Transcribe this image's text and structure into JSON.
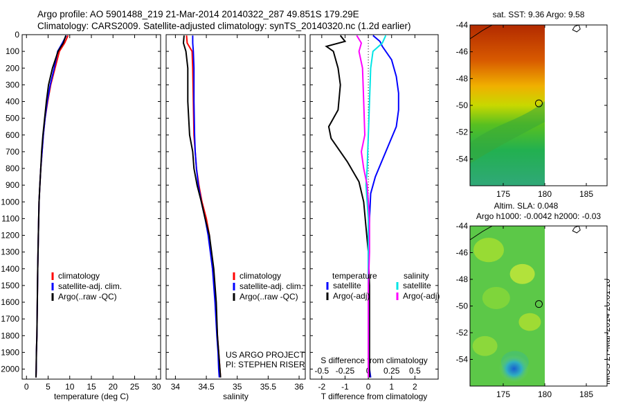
{
  "header": {
    "line1": "Argo profile: AO 5901488_219 21-Mar-2014 20140322_287 49.851S 179.29E",
    "line2": "Climatology: CARS2009. Satellite-adjusted climatology: synTS_20140320.nc (1.2d earlier)"
  },
  "stamp": "IMOS 27-Mar-2014 20:01:10",
  "colors": {
    "climatology": "#ff0000",
    "satellite": "#0000ff",
    "argo": "#000000",
    "sat_salinity": "#00e5e5",
    "argo_salinity": "#ff00ff"
  },
  "chart_data": [
    {
      "type": "line",
      "id": "temperature",
      "xlabel": "temperature (deg C)",
      "xlim": [
        -1,
        31
      ],
      "xticks": [
        0,
        5,
        10,
        15,
        20,
        25,
        30
      ],
      "ylim": [
        2060,
        0
      ],
      "yticks": [
        0,
        100,
        200,
        300,
        400,
        500,
        600,
        700,
        800,
        900,
        1000,
        1100,
        1200,
        1300,
        1400,
        1500,
        1600,
        1700,
        1800,
        1900,
        2000
      ],
      "legend": [
        "climatology",
        "satellite-adj. clim.",
        "Argo(..raw -QC)"
      ],
      "series": [
        {
          "name": "climatology",
          "color": "#ff0000",
          "x": [
            9.6,
            8.8,
            7.6,
            6.6,
            5.6,
            4.9,
            4.3,
            3.9,
            3.6,
            3.3,
            3.1,
            2.9,
            2.75,
            2.6,
            2.5,
            2.4,
            2.3,
            2.25,
            2.2
          ],
          "y": [
            5,
            50,
            100,
            200,
            300,
            400,
            500,
            600,
            700,
            800,
            900,
            1000,
            1200,
            1400,
            1600,
            1800,
            1900,
            2000,
            2050
          ]
        },
        {
          "name": "satellite-adj. clim.",
          "color": "#0000ff",
          "x": [
            9.2,
            8.3,
            7.2,
            6.4,
            5.5,
            4.8,
            4.3,
            3.9,
            3.6,
            3.3,
            3.1,
            2.9,
            2.75,
            2.6,
            2.5,
            2.4,
            2.3,
            2.25,
            2.2
          ],
          "y": [
            5,
            50,
            100,
            200,
            300,
            400,
            500,
            600,
            700,
            800,
            900,
            1000,
            1200,
            1400,
            1600,
            1800,
            1900,
            2000,
            2050
          ]
        },
        {
          "name": "Argo(..raw -QC)",
          "color": "#000000",
          "x": [
            9.1,
            8.5,
            7.3,
            6.0,
            5.1,
            4.6,
            4.2,
            3.8,
            3.5,
            3.3,
            3.1,
            2.9,
            2.75,
            2.6,
            2.5,
            2.4,
            2.3,
            2.25,
            2.2
          ],
          "y": [
            5,
            50,
            100,
            200,
            300,
            400,
            500,
            600,
            700,
            800,
            900,
            1000,
            1200,
            1400,
            1600,
            1800,
            1900,
            2000,
            2050
          ]
        }
      ]
    },
    {
      "type": "line",
      "id": "salinity",
      "xlabel": "salinity",
      "xlim": [
        33.85,
        36.1
      ],
      "xticks": [
        34,
        34.5,
        35,
        35.5,
        36
      ],
      "ylim": [
        2060,
        0
      ],
      "legend": [
        "climatology",
        "satellite-adj. clim.",
        "Argo(..raw -QC)"
      ],
      "annotations": [
        "US ARGO PROJECT",
        "PI: STEPHEN RISER"
      ],
      "series": [
        {
          "name": "climatology",
          "color": "#ff0000",
          "x": [
            34.18,
            34.19,
            34.27,
            34.28,
            34.29,
            34.3,
            34.32,
            34.34,
            34.38,
            34.43,
            34.5,
            34.55,
            34.6,
            34.65,
            34.68,
            34.7,
            34.72,
            34.73
          ],
          "y": [
            5,
            50,
            100,
            200,
            400,
            600,
            700,
            800,
            900,
            1000,
            1100,
            1200,
            1400,
            1600,
            1800,
            1900,
            2000,
            2050
          ]
        },
        {
          "name": "satellite-adj. clim.",
          "color": "#0000ff",
          "x": [
            34.28,
            34.28,
            34.29,
            34.3,
            34.3,
            34.31,
            34.32,
            34.34,
            34.37,
            34.42,
            34.48,
            34.53,
            34.6,
            34.64,
            34.67,
            34.69,
            34.7,
            34.71
          ],
          "y": [
            5,
            50,
            100,
            200,
            400,
            600,
            700,
            800,
            900,
            1000,
            1100,
            1200,
            1400,
            1600,
            1800,
            1900,
            2000,
            2050
          ]
        },
        {
          "name": "Argo(..raw -QC)",
          "color": "#000000",
          "x": [
            34.14,
            34.13,
            34.17,
            34.2,
            34.2,
            34.23,
            34.28,
            34.3,
            34.35,
            34.42,
            34.48,
            34.55,
            34.62,
            34.66,
            34.68,
            34.7,
            34.72,
            34.73
          ],
          "y": [
            5,
            50,
            100,
            200,
            400,
            600,
            700,
            800,
            900,
            1000,
            1100,
            1200,
            1400,
            1600,
            1800,
            1900,
            2000,
            2050
          ]
        }
      ]
    },
    {
      "type": "line",
      "id": "difference",
      "xlabel": "T difference from climatology",
      "xlabel2": "S difference from climatology",
      "xlim": [
        -2.5,
        3.0
      ],
      "xticks": [
        -2,
        -1,
        0,
        1,
        2
      ],
      "x2ticks": [
        -0.5,
        -0.25,
        0,
        0.25,
        0.5
      ],
      "x2tick_labels": [
        "-0.5",
        "-0.25",
        "0",
        "0.25",
        "0.5"
      ],
      "ylim": [
        2060,
        0
      ],
      "legend_temperature": {
        "title": "temperature",
        "items": [
          "satellite",
          "Argo(-adj)"
        ]
      },
      "legend_salinity": {
        "title": "salinity",
        "items": [
          "satellite",
          "Argo(-adj)"
        ]
      },
      "series": [
        {
          "name": "temperature satellite",
          "color": "#0000ff",
          "x": [
            0.2,
            0.5,
            0.6,
            1.0,
            1.2,
            1.3,
            1.3,
            1.2,
            0.9,
            0.6,
            0.3,
            0.1,
            0.05,
            0.0,
            0.0,
            0.0,
            0.0,
            0.05,
            0.1
          ],
          "y": [
            5,
            40,
            70,
            150,
            250,
            350,
            450,
            550,
            650,
            750,
            850,
            950,
            1100,
            1300,
            1500,
            1700,
            1900,
            2000,
            2050
          ]
        },
        {
          "name": "temperature Argo(-adj)",
          "color": "#000000",
          "x": [
            -1.2,
            -1.0,
            -1.8,
            -1.5,
            -1.3,
            -1.2,
            -1.3,
            -1.7,
            -1.6,
            -0.9,
            -0.4,
            -0.2,
            -0.1,
            0.0,
            0.05,
            0.05,
            0.05,
            0.05,
            0.05
          ],
          "y": [
            5,
            40,
            70,
            100,
            200,
            300,
            450,
            550,
            620,
            760,
            880,
            1000,
            1150,
            1300,
            1500,
            1700,
            1900,
            2000,
            2050
          ]
        },
        {
          "name": "salinity satellite",
          "color": "#00e5e5",
          "x": [
            0.75,
            0.6,
            0.2,
            0.1,
            0.05,
            0.0,
            -0.05,
            -0.1,
            -0.05,
            0.0,
            0.0,
            0.0,
            0.0,
            0.0,
            0.0,
            0.0
          ],
          "y": [
            5,
            50,
            100,
            200,
            400,
            600,
            800,
            900,
            1000,
            1100,
            1300,
            1500,
            1700,
            1900,
            2000,
            2050
          ]
        },
        {
          "name": "salinity Argo(-adj)",
          "color": "#ff00ff",
          "x": [
            -0.5,
            -0.3,
            -0.4,
            -0.25,
            -0.2,
            -0.15,
            -0.3,
            -0.2,
            -0.05,
            0.0,
            0.05,
            0.05,
            0.0,
            0.0,
            0.0,
            0.0
          ],
          "y": [
            5,
            50,
            100,
            200,
            400,
            600,
            700,
            800,
            900,
            1000,
            1100,
            1300,
            1500,
            1700,
            1900,
            2050
          ]
        }
      ]
    },
    {
      "type": "heatmap",
      "id": "sst_map",
      "title": "sat. SST: 9.36 Argo: 9.58",
      "xlim": [
        171,
        187.5
      ],
      "ylim": [
        -56,
        -44
      ],
      "xticks": [
        175,
        180,
        185
      ],
      "yticks": [
        -44,
        -46,
        -48,
        -50,
        -52,
        -54
      ],
      "data_extent_lon": [
        171,
        180
      ],
      "argo_position": [
        179.29,
        -49.851
      ]
    },
    {
      "type": "heatmap",
      "id": "sla_map",
      "title": "Altim. SLA: 0.048",
      "subtitle": "Argo h1000: -0.0042 h2000: -0.03",
      "xlim": [
        171,
        187.5
      ],
      "ylim": [
        -56,
        -44
      ],
      "xticks": [
        175,
        180,
        185
      ],
      "yticks": [
        -44,
        -46,
        -48,
        -50,
        -52,
        -54
      ],
      "data_extent_lon": [
        171,
        180
      ],
      "argo_position": [
        179.29,
        -49.851
      ]
    }
  ]
}
